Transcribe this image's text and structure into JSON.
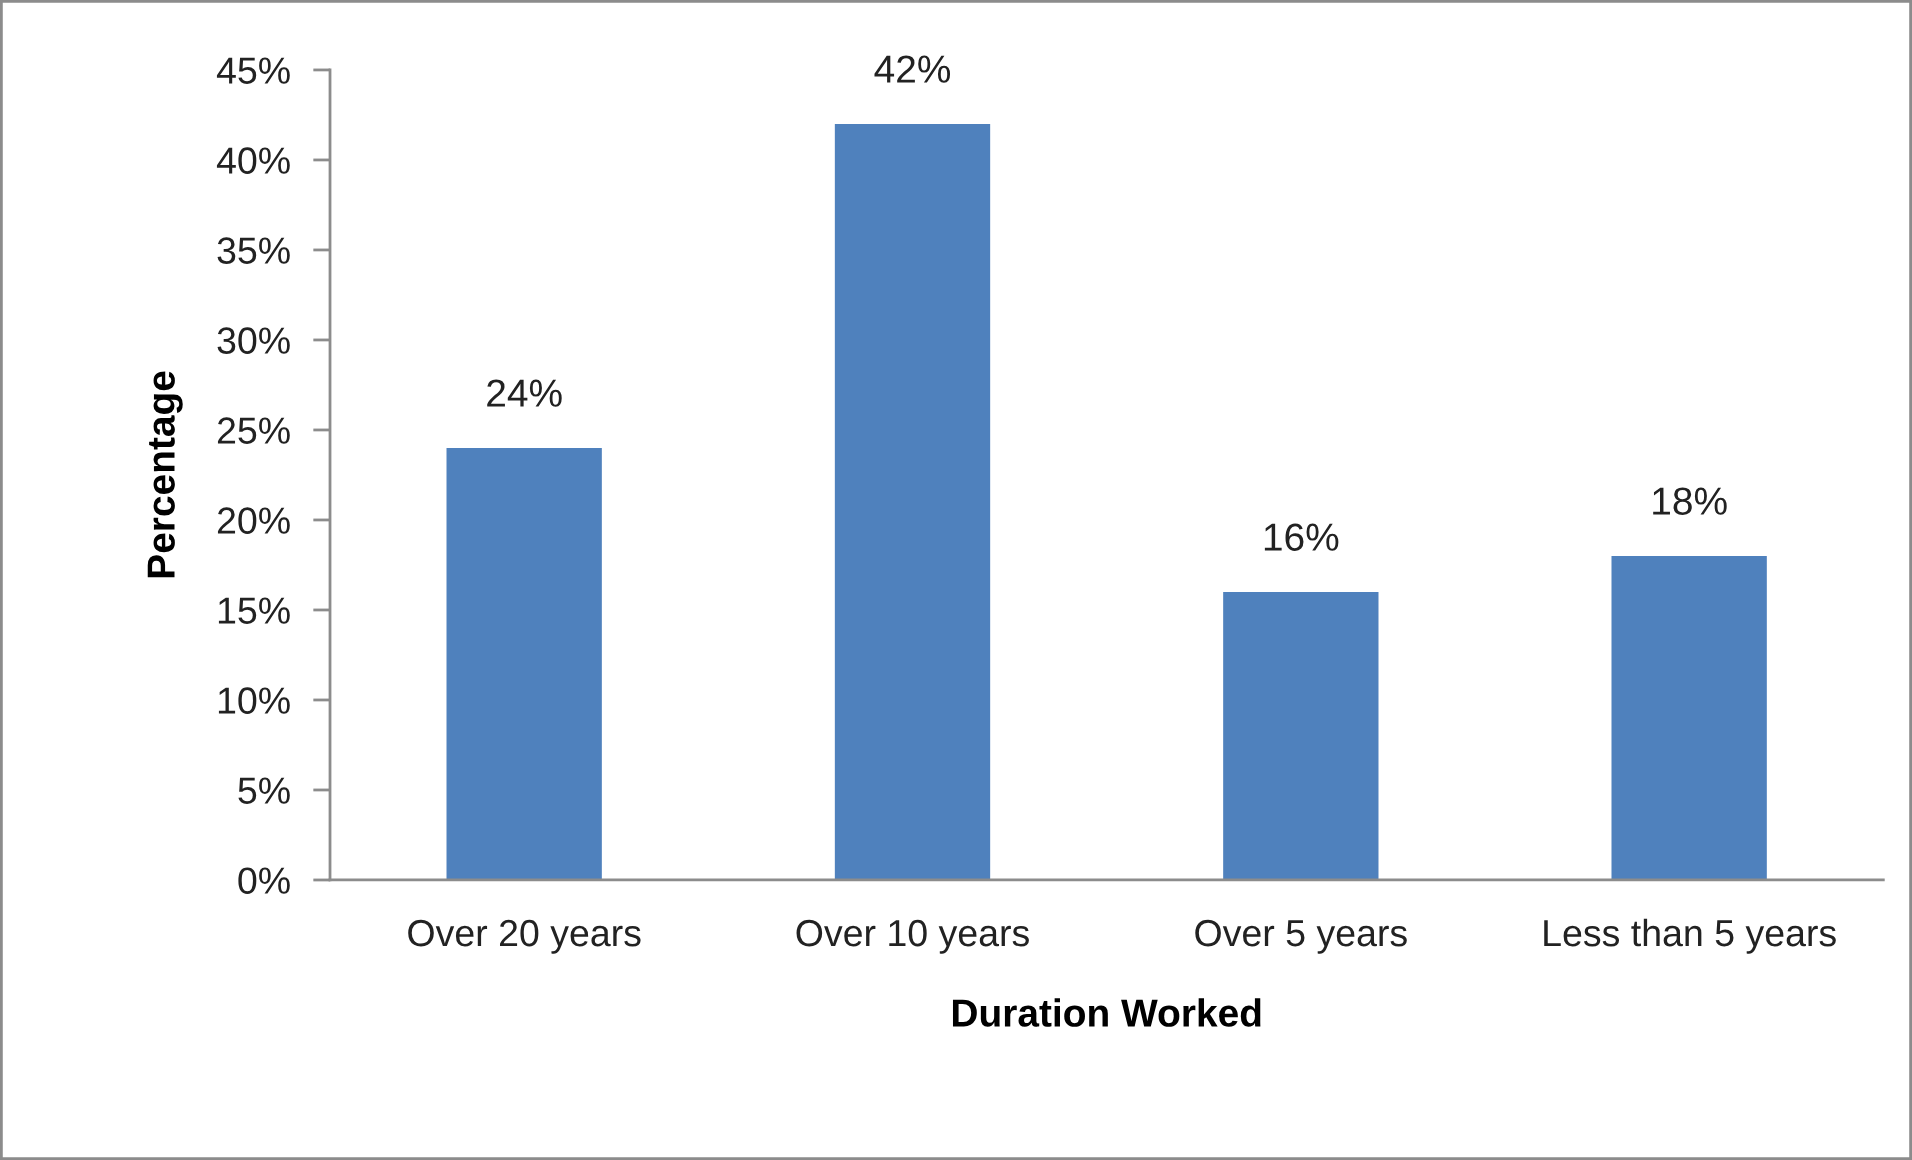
{
  "chart_data": {
    "type": "bar",
    "xlabel": "Duration Worked",
    "ylabel": "Percentage",
    "categories": [
      "Over 20 years",
      "Over 10 years",
      "Over 5 years",
      "Less than 5 years"
    ],
    "values": [
      24,
      42,
      16,
      18
    ],
    "color": "#4f81bd",
    "value_labels": [
      "24%",
      "42%",
      "16%",
      "18%"
    ],
    "ylim": [
      0,
      45
    ],
    "yticks": [
      {
        "value": 0,
        "label": "0%"
      },
      {
        "value": 5,
        "label": "5%"
      },
      {
        "value": 10,
        "label": "10%"
      },
      {
        "value": 15,
        "label": "15%"
      },
      {
        "value": 20,
        "label": "20%"
      },
      {
        "value": 25,
        "label": "25%"
      },
      {
        "value": 30,
        "label": "30%"
      },
      {
        "value": 35,
        "label": "35%"
      },
      {
        "value": 40,
        "label": "40%"
      },
      {
        "value": 45,
        "label": "45%"
      }
    ],
    "grid": false
  }
}
